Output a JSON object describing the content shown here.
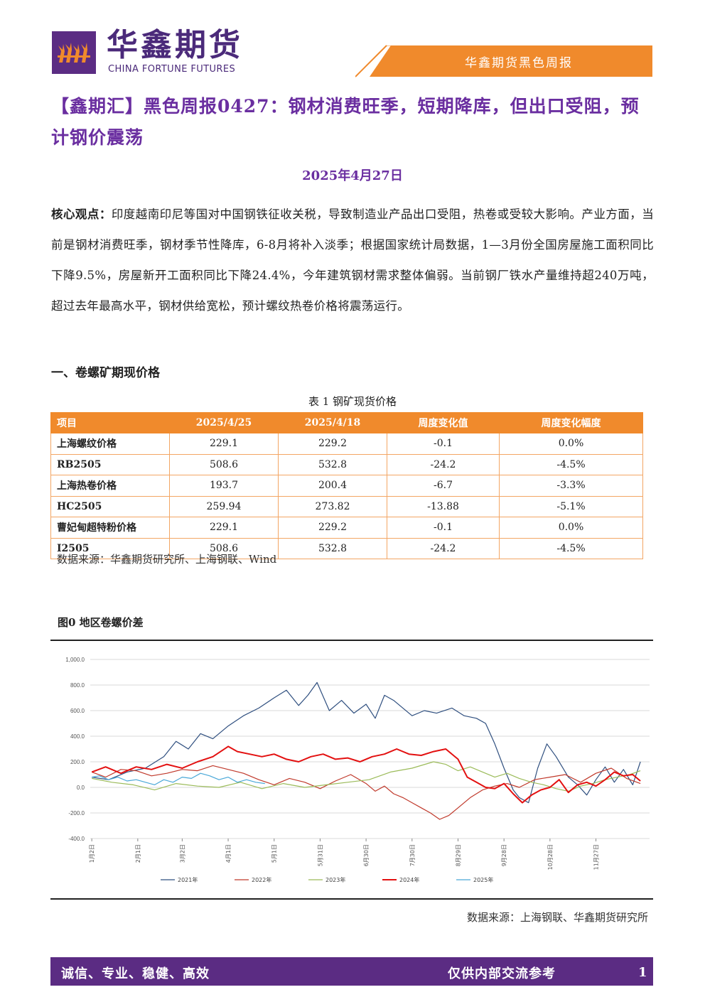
{
  "header": {
    "brand_cn": "华鑫期货",
    "brand_en": "CHINA FORTUNE FUTURES",
    "report_name": "华鑫期货黑色周报",
    "logo": "fortune-flames-logo"
  },
  "title": "【鑫期汇】黑色周报0427：钢材消费旺季，短期降库，但出口受阻，预计钢价震荡",
  "date": "2025年4月27日",
  "core": {
    "label": "核心观点：",
    "text": "印度越南印尼等国对中国钢铁征收关税，导致制造业产品出口受阻，热卷或受较大影响。产业方面，当前是钢材消费旺季，钢材季节性降库，6-8月将补入淡季；根据国家统计局数据，1—3月份全国房屋施工面积同比下降9.5%，房屋新开工面积同比下降24.4%，今年建筑钢材需求整体偏弱。当前钢厂铁水产量维持超240万吨，超过去年最高水平，钢材供给宽松，预计螺纹热卷价格将震荡运行。"
  },
  "section1": "一、卷螺矿期现价格",
  "table": {
    "caption": "表 1 钢矿现货价格",
    "headers": [
      "项目",
      "2025/4/25",
      "2025/4/18",
      "周度变化值",
      "周度变化幅度"
    ],
    "rows": [
      [
        "上海螺纹价格",
        "229.1",
        "229.2",
        "-0.1",
        "0.0%"
      ],
      [
        "RB2505",
        "508.6",
        "532.8",
        "-24.2",
        "-4.5%"
      ],
      [
        "上海热卷价格",
        "193.7",
        "200.4",
        "-6.7",
        "-3.3%"
      ],
      [
        "HC2505",
        "259.94",
        "273.82",
        "-13.88",
        "-5.1%"
      ],
      [
        "曹妃甸超特粉价格",
        "229.1",
        "229.2",
        "-0.1",
        "0.0%"
      ],
      [
        "I2505",
        "508.6",
        "532.8",
        "-24.2",
        "-4.5%"
      ]
    ],
    "source": "数据来源：华鑫期货研究所、上海钢联、Wind"
  },
  "figure": {
    "caption": "图0 地区卷螺价差",
    "source": "数据来源：上海钢联、华鑫期货研究所"
  },
  "chart_data": {
    "type": "line",
    "title": "",
    "xlabel": "",
    "ylabel": "",
    "ylim": [
      -400,
      1000
    ],
    "y_ticks": [
      "1,000.0",
      "800.0",
      "600.0",
      "400.0",
      "200.0",
      "0.0",
      "-200.0",
      "-400.0"
    ],
    "x_ticks": [
      "1月2日",
      "2月1日",
      "3月2日",
      "4月1日",
      "5月1日",
      "5月31日",
      "6月30日",
      "7月30日",
      "8月29日",
      "9月28日",
      "10月28日",
      "11月27日"
    ],
    "x_tick_days": [
      1,
      31,
      60,
      90,
      120,
      150,
      180,
      210,
      240,
      270,
      300,
      330
    ],
    "grid": true,
    "legend_position": "bottom",
    "series": [
      {
        "name": "2021年",
        "color": "#2f4f7f",
        "width": 1.2,
        "x": [
          1,
          12,
          24,
          36,
          48,
          56,
          64,
          72,
          80,
          90,
          100,
          110,
          120,
          128,
          136,
          142,
          148,
          156,
          164,
          172,
          180,
          186,
          192,
          198,
          204,
          210,
          218,
          226,
          236,
          244,
          252,
          258,
          264,
          270,
          276,
          280,
          286,
          292,
          298,
          304,
          312,
          318,
          324,
          330,
          336,
          342,
          348,
          354,
          359
        ],
        "y": [
          80,
          60,
          120,
          150,
          240,
          360,
          300,
          420,
          380,
          480,
          560,
          620,
          700,
          760,
          640,
          720,
          820,
          600,
          680,
          580,
          650,
          540,
          720,
          680,
          620,
          560,
          600,
          580,
          620,
          560,
          540,
          500,
          340,
          150,
          -20,
          -80,
          -120,
          150,
          340,
          240,
          80,
          20,
          -60,
          60,
          160,
          40,
          140,
          20,
          200
        ]
      },
      {
        "name": "2022年",
        "color": "#c0392b",
        "width": 1.2,
        "x": [
          1,
          10,
          20,
          30,
          40,
          50,
          60,
          70,
          80,
          90,
          100,
          110,
          120,
          130,
          140,
          150,
          160,
          170,
          180,
          186,
          192,
          198,
          204,
          210,
          216,
          222,
          228,
          234,
          240,
          248,
          256,
          264,
          272,
          280,
          290,
          300,
          310,
          320,
          330,
          340,
          350,
          359
        ],
        "y": [
          120,
          80,
          140,
          130,
          90,
          110,
          140,
          130,
          170,
          140,
          110,
          60,
          20,
          70,
          40,
          -10,
          50,
          100,
          30,
          -30,
          10,
          -50,
          -80,
          -120,
          -160,
          -200,
          -250,
          -220,
          -160,
          -80,
          -20,
          10,
          30,
          0,
          60,
          80,
          100,
          40,
          110,
          150,
          70,
          30
        ]
      },
      {
        "name": "2023年",
        "color": "#9bbb59",
        "width": 1.2,
        "x": [
          1,
          14,
          28,
          42,
          56,
          70,
          84,
          98,
          112,
          126,
          140,
          154,
          168,
          182,
          196,
          210,
          224,
          232,
          240,
          248,
          256,
          264,
          272,
          280,
          288,
          296,
          304,
          312,
          320,
          328,
          336,
          344,
          352,
          359
        ],
        "y": [
          70,
          40,
          20,
          -20,
          30,
          10,
          0,
          40,
          -10,
          30,
          0,
          20,
          40,
          60,
          120,
          150,
          200,
          180,
          130,
          160,
          120,
          80,
          110,
          70,
          40,
          20,
          -10,
          -30,
          10,
          30,
          60,
          80,
          100,
          130
        ]
      },
      {
        "name": "2024年",
        "color": "#e31010",
        "width": 2,
        "x": [
          1,
          10,
          20,
          30,
          40,
          50,
          60,
          70,
          80,
          90,
          96,
          104,
          112,
          120,
          128,
          136,
          144,
          152,
          160,
          168,
          176,
          184,
          192,
          200,
          208,
          216,
          224,
          232,
          240,
          246,
          252,
          258,
          264,
          270,
          276,
          282,
          288,
          294,
          300,
          306,
          312,
          318,
          324,
          330,
          336,
          342,
          348,
          354,
          359
        ],
        "y": [
          120,
          160,
          110,
          160,
          140,
          180,
          150,
          200,
          240,
          320,
          280,
          260,
          240,
          260,
          220,
          200,
          240,
          260,
          220,
          230,
          200,
          240,
          260,
          300,
          260,
          250,
          280,
          300,
          220,
          80,
          40,
          0,
          -10,
          30,
          -50,
          -120,
          -60,
          -20,
          0,
          60,
          -40,
          20,
          40,
          10,
          60,
          120,
          90,
          100,
          50
        ]
      },
      {
        "name": "2025年",
        "color": "#4aa8d8",
        "width": 1.2,
        "x": [
          1,
          6,
          12,
          18,
          24,
          30,
          36,
          42,
          48,
          54,
          60,
          66,
          72,
          78,
          84,
          90,
          96,
          102,
          108,
          114
        ],
        "y": [
          80,
          90,
          60,
          80,
          50,
          60,
          40,
          20,
          60,
          40,
          80,
          70,
          110,
          90,
          60,
          80,
          40,
          60,
          40,
          30
        ]
      }
    ]
  }
}
